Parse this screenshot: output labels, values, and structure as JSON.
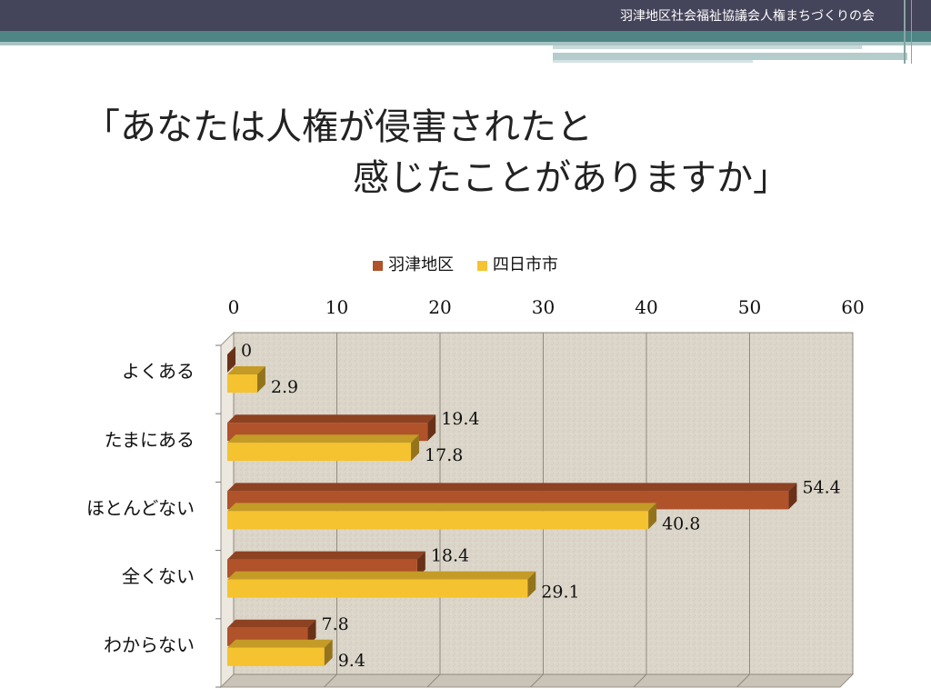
{
  "header": {
    "title": "羽津地区社会福祉協議会人権まちづくりの会"
  },
  "slide": {
    "title_line1": "「あなたは人権が侵害されたと",
    "title_line2": "感じたことがありますか」"
  },
  "colors": {
    "header_bg": "#44445a",
    "accent_teal": "#4f8585",
    "series1": "#b0522a",
    "series2": "#f5c230",
    "plot_bg": "#d9d3c7"
  },
  "chart_data": {
    "type": "bar",
    "orientation": "horizontal",
    "categories": [
      "よくある",
      "たまにある",
      "ほとんどない",
      "全くない",
      "わからない"
    ],
    "series": [
      {
        "name": "羽津地区",
        "values": [
          0,
          19.4,
          54.4,
          18.4,
          7.8
        ],
        "color": "#b0522a"
      },
      {
        "name": "四日市市",
        "values": [
          2.9,
          17.8,
          40.8,
          29.1,
          9.4
        ],
        "color": "#f5c230"
      }
    ],
    "data_labels": [
      [
        "0",
        "19.4",
        "54.4",
        "18.4",
        "7.8"
      ],
      [
        "2.9",
        "17.8",
        "40.8",
        "29.1",
        "9.4"
      ]
    ],
    "xlim": [
      0,
      60
    ],
    "xticks": [
      "0",
      "10",
      "20",
      "30",
      "40",
      "50",
      "60"
    ],
    "xaxis_position": "top",
    "legend_position": "top-center",
    "grid": true
  }
}
